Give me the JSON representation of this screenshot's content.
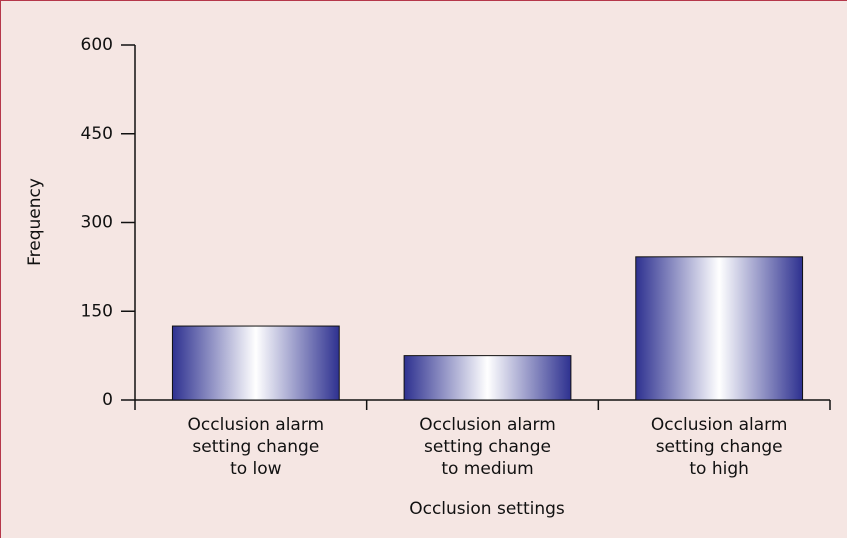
{
  "chart_data": {
    "type": "bar",
    "x_label": "Occlusion settings",
    "y_label": "Frequency",
    "categories": [
      "Occlusion alarm\nsetting change\nto low",
      "Occlusion alarm\nsetting change\nto medium",
      "Occlusion alarm\nsetting change\nto high"
    ],
    "values": [
      125,
      75,
      242
    ],
    "color": "#2e3190",
    "ylim": [
      0,
      600
    ],
    "yticks": [
      0,
      150,
      300,
      450,
      600
    ],
    "grid": false
  }
}
